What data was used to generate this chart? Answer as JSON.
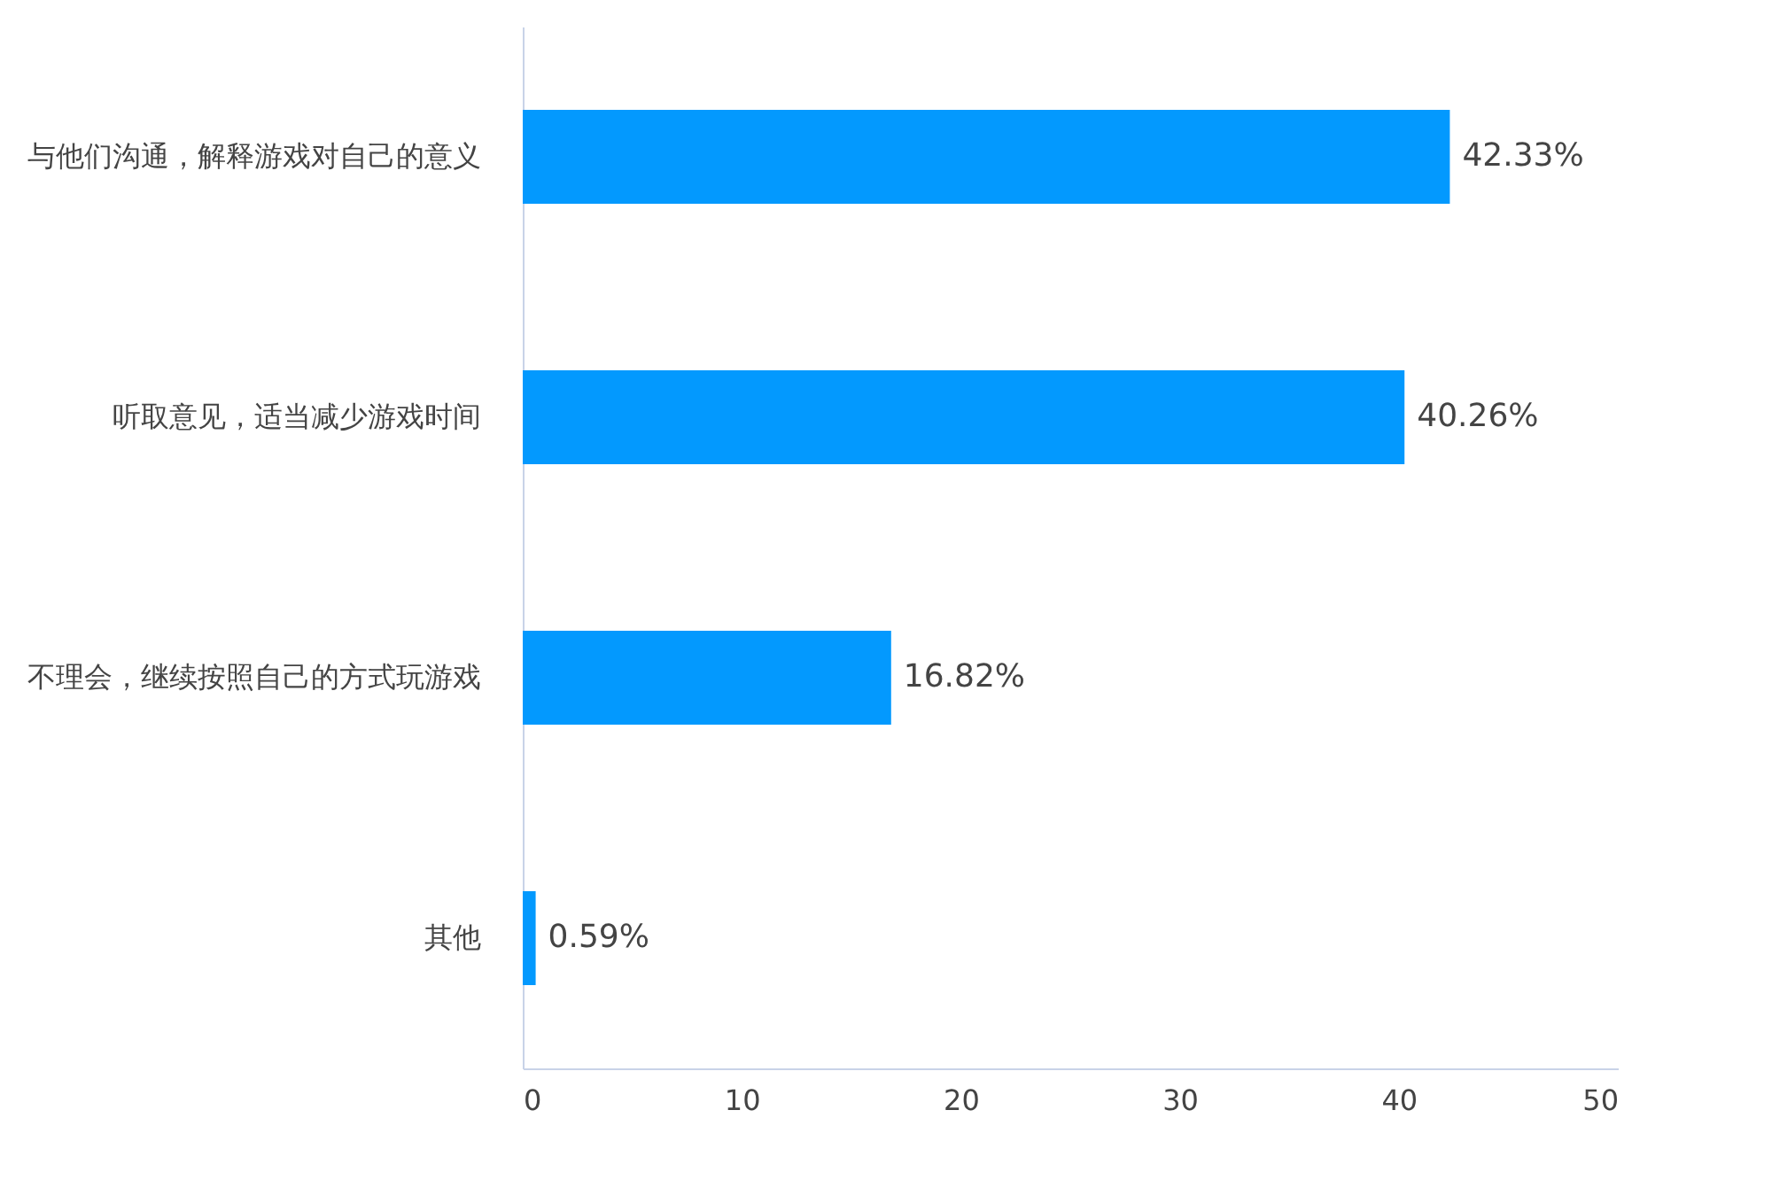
{
  "chart_data": {
    "type": "bar",
    "orientation": "horizontal",
    "categories": [
      "与他们沟通，解释游戏对自己的意义",
      "听取意见，适当减少游戏时间",
      "不理会，继续按照自己的方式玩游戏",
      "其他"
    ],
    "values": [
      42.33,
      40.26,
      16.82,
      0.59
    ],
    "value_labels": [
      "42.33%",
      "40.26%",
      "16.82%",
      "0.59%"
    ],
    "color": "#0399fe",
    "xlim": [
      0,
      50
    ],
    "xticks": [
      0,
      10,
      20,
      30,
      40,
      50
    ],
    "grid": false
  }
}
